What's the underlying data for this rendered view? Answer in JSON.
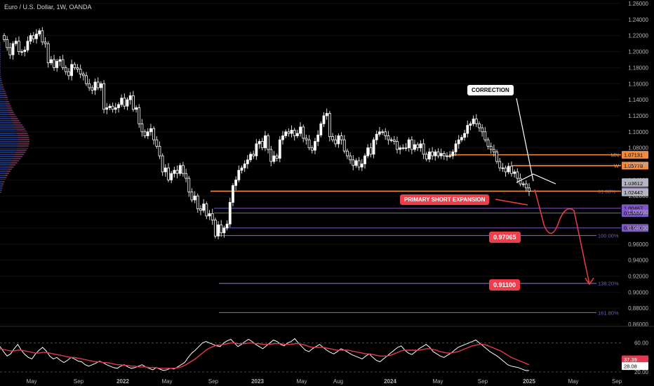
{
  "header": {
    "title": "Euro / U.S. Dollar, 1W, OANDA"
  },
  "annotations": {
    "correction": "CORRECTION",
    "primary_short": "PRIMARY SHORT EXPANSION",
    "target1": "0.97065",
    "target2": "0.91100"
  },
  "colors": {
    "bg": "#000000",
    "up": "#ffffff",
    "down": "#ffffff",
    "fib": "#7e57c2",
    "orange": "#f08a3e",
    "red": "#ef3d4b",
    "rsi": "#ffffff",
    "rsi_ma": "#e53950"
  },
  "chart_data": [
    {
      "type": "candlestick",
      "title": "Euro / U.S. Dollar, 1W, OANDA",
      "ylim": [
        0.86,
        1.26
      ],
      "y_ticks": [
        "1.26000",
        "1.24000",
        "1.22000",
        "1.20000",
        "1.18000",
        "1.16000",
        "1.14000",
        "1.12000",
        "1.10000",
        "1.08000",
        "1.06000",
        "1.04000",
        "1.02000",
        "1.00000",
        "0.98000",
        "0.96000",
        "0.94000",
        "0.92000",
        "0.90000",
        "0.88000",
        "0.86000"
      ],
      "x_ticks": [
        "May",
        "Sep",
        "2022",
        "May",
        "Sep",
        "2023",
        "May",
        "Aug",
        "2024",
        "May",
        "Sep",
        "2025",
        "May",
        "Sep"
      ],
      "price_tags": [
        {
          "label": "1.07131",
          "value": 1.07131,
          "color": "#f08a3e",
          "prefix": "MN"
        },
        {
          "label": "1.05778",
          "value": 1.05778,
          "color": "#f08a3e",
          "prefix": "W"
        },
        {
          "label": "1.03714",
          "value": 1.03714,
          "color": "#b2b5be"
        },
        {
          "label": "1.03612",
          "value": 1.03612,
          "color": "#b2b5be"
        },
        {
          "label": "1.02590",
          "value": 1.0259,
          "color": "#7e57c2"
        },
        {
          "label": "1.02442",
          "value": 1.02442,
          "color": "#b2b5be"
        },
        {
          "label": "1.00467",
          "value": 1.00467,
          "color": "#7e57c2"
        },
        {
          "label": "0.99860",
          "value": 0.9986,
          "color": "#7e57c2"
        },
        {
          "label": "0.98016",
          "value": 0.98016,
          "color": "#7e57c2"
        }
      ],
      "fib_levels": [
        {
          "label": "61.80%",
          "value": 1.0259
        },
        {
          "label": "100.00%",
          "value": 0.97065
        },
        {
          "label": "138.20%",
          "value": 0.911
        },
        {
          "label": "161.80%",
          "value": 0.8745
        }
      ],
      "closes": [
        1.215,
        1.205,
        1.196,
        1.21,
        1.213,
        1.2,
        1.2,
        1.202,
        1.213,
        1.22,
        1.216,
        1.222,
        1.226,
        1.212,
        1.21,
        1.186,
        1.19,
        1.18,
        1.188,
        1.19,
        1.18,
        1.175,
        1.17,
        1.184,
        1.18,
        1.178,
        1.172,
        1.17,
        1.16,
        1.155,
        1.152,
        1.162,
        1.155,
        1.16,
        1.128,
        1.13,
        1.132,
        1.128,
        1.13,
        1.134,
        1.142,
        1.132,
        1.14,
        1.145,
        1.128,
        1.13,
        1.11,
        1.1,
        1.095,
        1.1,
        1.104,
        1.09,
        1.082,
        1.07,
        1.05,
        1.055,
        1.04,
        1.048,
        1.052,
        1.048,
        1.058,
        1.048,
        1.042,
        1.025,
        1.015,
        1.02,
        1.004,
        1.002,
        1.01,
        0.995,
        0.998,
        0.99,
        0.97,
        0.984,
        0.974,
        0.98,
        0.985,
        1.012,
        1.033,
        1.04,
        1.052,
        1.055,
        1.06,
        1.065,
        1.072,
        1.07,
        1.085,
        1.088,
        1.08,
        1.095,
        1.078,
        1.063,
        1.07,
        1.067,
        1.09,
        1.095,
        1.1,
        1.098,
        1.102,
        1.095,
        1.098,
        1.106,
        1.092,
        1.09,
        1.08,
        1.077,
        1.088,
        1.096,
        1.11,
        1.12,
        1.123,
        1.094,
        1.09,
        1.085,
        1.095,
        1.09,
        1.076,
        1.07,
        1.065,
        1.058,
        1.064,
        1.056,
        1.06,
        1.07,
        1.08,
        1.072,
        1.09,
        1.097,
        1.1,
        1.1,
        1.095,
        1.09,
        1.09,
        1.088,
        1.078,
        1.08,
        1.08,
        1.08,
        1.09,
        1.078,
        1.084,
        1.08,
        1.085,
        1.072,
        1.066,
        1.075,
        1.07,
        1.075,
        1.07,
        1.073,
        1.07,
        1.07,
        1.07,
        1.075,
        1.085,
        1.09,
        1.093,
        1.098,
        1.108,
        1.11,
        1.116,
        1.11,
        1.105,
        1.1,
        1.09,
        1.082,
        1.078,
        1.075,
        1.063,
        1.055,
        1.055,
        1.05,
        1.057,
        1.048,
        1.05,
        1.042,
        1.035,
        1.035,
        1.03,
        1.026
      ]
    },
    {
      "type": "line",
      "title": "RSI",
      "ylim": [
        20,
        80
      ],
      "y_ticks": [
        "60.00",
        "20.00"
      ],
      "series": [
        {
          "values": [
            55,
            48,
            42,
            45,
            52,
            58,
            50,
            44,
            40,
            38,
            45,
            50,
            54,
            49,
            42,
            38,
            40,
            36,
            33,
            36,
            40,
            38,
            35,
            34,
            30,
            28,
            30,
            32,
            35,
            33,
            30,
            28,
            26,
            25,
            28,
            30,
            27,
            25,
            26,
            28,
            30,
            27,
            25,
            23,
            26,
            24,
            22,
            23,
            25,
            24,
            27,
            30,
            33,
            40,
            46,
            50,
            55,
            60,
            62,
            60,
            58,
            56,
            55,
            60,
            63,
            65,
            60,
            55,
            58,
            62,
            65,
            62,
            58,
            55,
            52,
            56,
            60,
            64,
            62,
            58,
            56,
            60,
            62,
            66,
            60,
            55,
            50,
            48,
            52,
            55,
            58,
            54,
            50,
            47,
            45,
            48,
            52,
            50,
            47,
            44,
            42,
            40,
            38,
            42,
            45,
            40,
            36,
            34,
            38,
            42,
            46,
            50,
            54,
            56,
            50,
            46,
            44,
            48,
            52,
            55,
            58,
            54,
            48,
            45,
            42,
            40,
            43,
            46,
            50,
            54,
            56,
            58,
            60,
            62,
            64,
            60,
            56,
            52,
            48,
            45,
            42,
            38,
            34,
            30,
            28,
            27,
            26,
            24,
            22,
            22
          ]
        },
        {
          "values": [
            52,
            51,
            50,
            49,
            49,
            50,
            50,
            49,
            48,
            47,
            46,
            46,
            47,
            47,
            46,
            45,
            44,
            43,
            42,
            41,
            40,
            40,
            39,
            38,
            37,
            36,
            35,
            34,
            34,
            33,
            33,
            32,
            31,
            30,
            30,
            29,
            29,
            28,
            28,
            27,
            27,
            27,
            26,
            26,
            26,
            25,
            25,
            25,
            25,
            25,
            26,
            27,
            29,
            32,
            35,
            38,
            42,
            46,
            50,
            53,
            55,
            57,
            57,
            58,
            59,
            60,
            60,
            59,
            59,
            59,
            60,
            60,
            59,
            59,
            58,
            58,
            58,
            59,
            59,
            59,
            58,
            58,
            58,
            59,
            59,
            58,
            57,
            55,
            54,
            54,
            54,
            54,
            53,
            52,
            51,
            50,
            50,
            50,
            50,
            49,
            48,
            47,
            46,
            45,
            45,
            44,
            43,
            42,
            42,
            42,
            43,
            45,
            47,
            49,
            50,
            50,
            50,
            50,
            50,
            51,
            52,
            52,
            51,
            50,
            48,
            47,
            46,
            46,
            47,
            48,
            50,
            52,
            54,
            56,
            57,
            58,
            58,
            57,
            55,
            53,
            51,
            49,
            46,
            43,
            40,
            38,
            36,
            34,
            32,
            30
          ]
        }
      ],
      "tags": [
        {
          "label": "37.39",
          "value": 37.39,
          "color": "#e53950"
        },
        {
          "label": "28.08",
          "value": 28.08,
          "color": "#ffffff"
        }
      ]
    }
  ]
}
